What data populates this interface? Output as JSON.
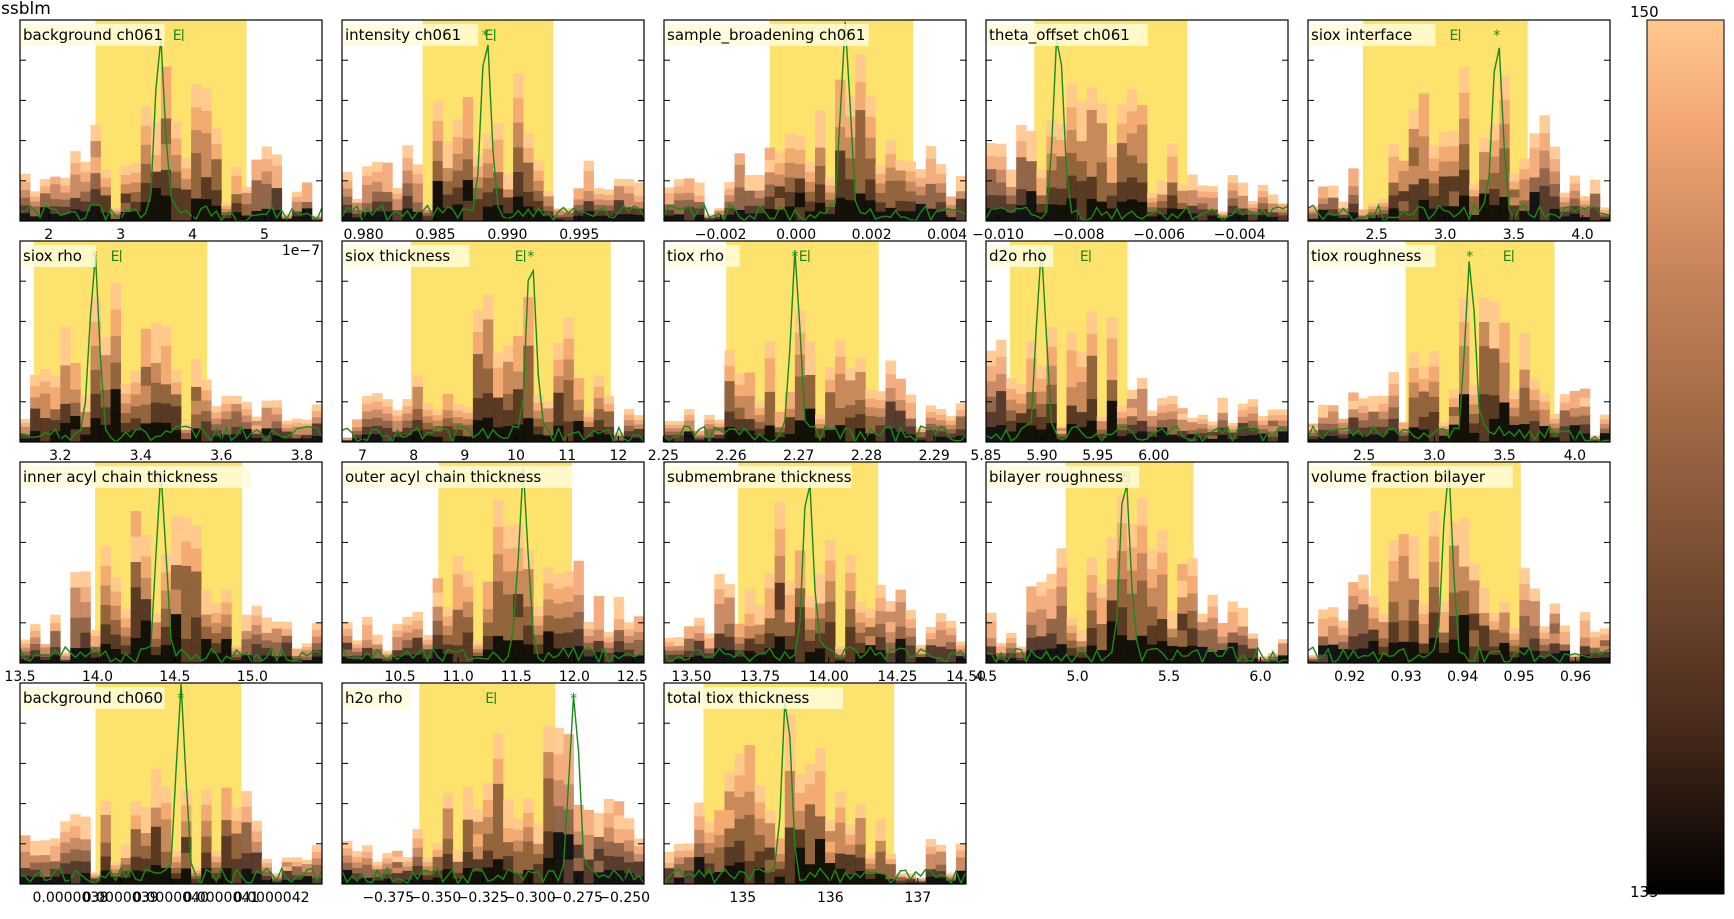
{
  "figure": {
    "title": "ssblm",
    "colorbar": {
      "vmin": 135,
      "vmax": 150,
      "top_label": "150",
      "bottom_label": "135"
    }
  },
  "colors": {
    "ci_band": "#fde26d",
    "trace": "#1a8a1a",
    "cmap": [
      "#000000",
      "#4a2c1c",
      "#8a5a3a",
      "#c4825a",
      "#f2a673",
      "#ffc88e"
    ],
    "axis": "#000000"
  },
  "chart_data": [
    {
      "type": "bar",
      "title": "background ch061",
      "xlim": [
        1.6,
        5.8
      ],
      "xticks": [
        "2",
        "3",
        "4",
        "5"
      ],
      "xtick_values": [
        2,
        3,
        4,
        5
      ],
      "band": [
        2.65,
        4.75
      ],
      "best": 3.55,
      "mean": 3.78,
      "seed": 11,
      "offset_label": ""
    },
    {
      "type": "bar",
      "title": "intensity ch061",
      "xlim": [
        0.9785,
        0.9995
      ],
      "xticks": [
        "0.980",
        "0.985",
        "0.990",
        "0.995"
      ],
      "xtick_values": [
        0.98,
        0.985,
        0.99,
        0.995
      ],
      "band": [
        0.9841,
        0.9932
      ],
      "best": 0.9885,
      "mean": 0.9887,
      "seed": 23,
      "offset_label": ""
    },
    {
      "type": "bar",
      "title": "sample_broadening ch061",
      "xlim": [
        -0.0035,
        0.0045
      ],
      "xticks": [
        "−0.002",
        "0.000",
        "0.002",
        "0.004"
      ],
      "xtick_values": [
        -0.002,
        0,
        0.002,
        0.004
      ],
      "band": [
        -0.0007,
        0.0031
      ],
      "best": 0.0013,
      "mean": 0.0013,
      "seed": 37,
      "offset_label": ""
    },
    {
      "type": "bar",
      "title": "theta_offset ch061",
      "xlim": [
        -0.0103,
        -0.0028
      ],
      "xticks": [
        "−0.010",
        "−0.008",
        "−0.006",
        "−0.004"
      ],
      "xtick_values": [
        -0.01,
        -0.008,
        -0.006,
        -0.004
      ],
      "band": [
        -0.0091,
        -0.0053
      ],
      "best": -0.0085,
      "mean": -0.0071,
      "seed": 41,
      "offset_label": ""
    },
    {
      "type": "bar",
      "title": "siox interface",
      "xlim": [
        2.0,
        4.2
      ],
      "xticks": [
        "2.5",
        "3.0",
        "3.5",
        "4.0"
      ],
      "xtick_values": [
        2.5,
        3.0,
        3.5,
        4.0
      ],
      "band": [
        2.4,
        3.6
      ],
      "best": 3.38,
      "mean": 3.06,
      "seed": 53,
      "offset_label": ""
    },
    {
      "type": "bar",
      "title": "siox rho",
      "xlim": [
        3.1,
        3.85
      ],
      "xticks": [
        "3.2",
        "3.4",
        "3.6",
        "3.8"
      ],
      "xtick_values": [
        3.2,
        3.4,
        3.6,
        3.8
      ],
      "band": [
        3.135,
        3.565
      ],
      "best": 3.285,
      "mean": 3.335,
      "seed": 61,
      "offset_label": "1e−7"
    },
    {
      "type": "bar",
      "title": "siox thickness",
      "xlim": [
        6.6,
        12.5
      ],
      "xticks": [
        "7",
        "8",
        "9",
        "10",
        "11",
        "12"
      ],
      "xtick_values": [
        7,
        8,
        9,
        10,
        11,
        12
      ],
      "band": [
        7.95,
        11.85
      ],
      "best": 10.3,
      "mean": 10.05,
      "seed": 71,
      "offset_label": ""
    },
    {
      "type": "bar",
      "title": "tiox rho",
      "xlim": [
        2.2501,
        2.2947
      ],
      "xticks": [
        "2.25",
        "2.26",
        "2.27",
        "2.28",
        "2.29"
      ],
      "xtick_values": [
        2.25,
        2.26,
        2.27,
        2.28,
        2.29
      ],
      "band": [
        2.2593,
        2.2818
      ],
      "best": 2.2695,
      "mean": 2.2706,
      "seed": 83,
      "offset_label": ""
    },
    {
      "type": "bar",
      "title": "d2o rho",
      "xlim": [
        5.85,
        6.12
      ],
      "xticks": [
        "5.85",
        "5.90",
        "5.95",
        "6.00"
      ],
      "xtick_values": [
        5.85,
        5.9,
        5.95,
        6.0
      ],
      "band": [
        5.8715,
        5.9765
      ],
      "best": 5.8995,
      "mean": 5.9375,
      "seed": 97,
      "offset_label": ""
    },
    {
      "type": "bar",
      "title": "tiox roughness",
      "xlim": [
        2.1,
        4.25
      ],
      "xticks": [
        "2.5",
        "3.0",
        "3.5",
        "4.0"
      ],
      "xtick_values": [
        2.5,
        3.0,
        3.5,
        4.0
      ],
      "band": [
        2.795,
        3.855
      ],
      "best": 3.255,
      "mean": 3.515,
      "seed": 101,
      "offset_label": ""
    },
    {
      "type": "bar",
      "title": "inner acyl chain thickness",
      "xlim": [
        13.5,
        15.45
      ],
      "xticks": [
        "13.5",
        "14.0",
        "14.5",
        "15.0"
      ],
      "xtick_values": [
        13.5,
        14.0,
        14.5,
        15.0
      ],
      "band": [
        13.985,
        14.935
      ],
      "best": 14.41,
      "mean": 14.37,
      "seed": 113,
      "offset_label": ""
    },
    {
      "type": "bar",
      "title": "outer acyl chain thickness",
      "xlim": [
        10.0,
        12.6
      ],
      "xticks": [
        "10.5",
        "11.0",
        "11.5",
        "12.0",
        "12.5"
      ],
      "xtick_values": [
        10.5,
        11.0,
        11.5,
        12.0,
        12.5
      ],
      "band": [
        10.83,
        11.98
      ],
      "best": 11.56,
      "mean": 11.49,
      "seed": 127,
      "offset_label": ""
    },
    {
      "type": "bar",
      "title": "submembrane thickness",
      "xlim": [
        13.4,
        14.5
      ],
      "xticks": [
        "13.50",
        "13.75",
        "14.00",
        "14.25",
        "14.50"
      ],
      "xtick_values": [
        13.5,
        13.75,
        14.0,
        14.25,
        14.5
      ],
      "band": [
        13.67,
        14.18
      ],
      "best": 13.925,
      "mean": 13.88,
      "seed": 131,
      "offset_label": ""
    },
    {
      "type": "bar",
      "title": "bilayer roughness",
      "xlim": [
        4.5,
        6.15
      ],
      "xticks": [
        "4.5",
        "5.0",
        "5.5",
        "6.0"
      ],
      "xtick_values": [
        4.5,
        5.0,
        5.5,
        6.0
      ],
      "band": [
        4.935,
        5.635
      ],
      "best": 5.26,
      "mean": 5.25,
      "seed": 139,
      "offset_label": ""
    },
    {
      "type": "bar",
      "title": "volume fraction bilayer",
      "xlim": [
        0.9126,
        0.9661
      ],
      "xticks": [
        "0.92",
        "0.93",
        "0.94",
        "0.95",
        "0.96"
      ],
      "xtick_values": [
        0.92,
        0.93,
        0.94,
        0.95,
        0.96
      ],
      "band": [
        0.9237,
        0.9503
      ],
      "best": 0.9374,
      "mean": 0.9363,
      "seed": 149,
      "offset_label": ""
    },
    {
      "type": "bar",
      "title": "background ch060",
      "xlim": [
        3.7e-06,
        4.3e-06
      ],
      "xticks": [
        "0.0000038",
        "0.0000039",
        "0.0000040",
        "0.0000041",
        "0.0000042"
      ],
      "xtick_values": [
        3.8e-06,
        3.9e-06,
        4e-06,
        4.1e-06,
        4.2e-06
      ],
      "band": [
        3.85e-06,
        4.14e-06
      ],
      "best": 4.02e-06,
      "mean": 3.97e-06,
      "seed": 157,
      "offset_label": ""
    },
    {
      "type": "bar",
      "title": "h2o rho",
      "xlim": [
        -0.3995,
        -0.2395
      ],
      "xticks": [
        "−0.375",
        "−0.350",
        "−0.325",
        "−0.300",
        "−0.275",
        "−0.250"
      ],
      "xtick_values": [
        -0.375,
        -0.35,
        -0.325,
        -0.3,
        -0.275,
        -0.25
      ],
      "band": [
        -0.3585,
        -0.2865
      ],
      "best": -0.2765,
      "mean": -0.3215,
      "seed": 163,
      "offset_label": ""
    },
    {
      "type": "bar",
      "title": "total tiox thickness",
      "xlim": [
        134.1,
        137.55
      ],
      "xticks": [
        "135",
        "136",
        "137"
      ],
      "xtick_values": [
        135,
        136,
        137
      ],
      "band": [
        134.55,
        136.73
      ],
      "best": 135.5,
      "mean": 135.58,
      "seed": 173,
      "offset_label": ""
    }
  ]
}
